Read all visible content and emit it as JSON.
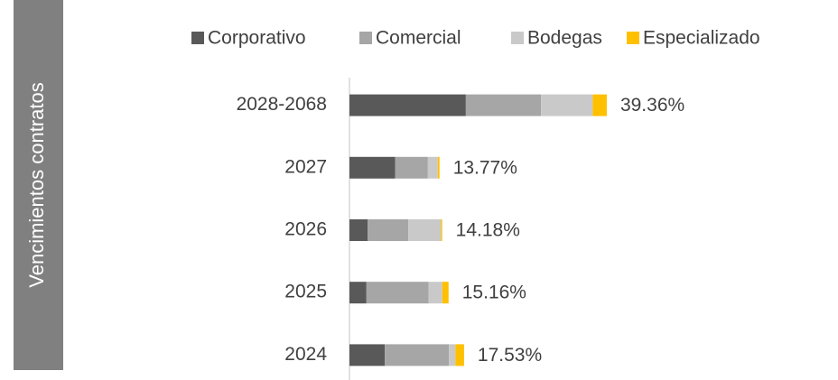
{
  "chart_data": {
    "type": "stacked-bar-horizontal",
    "y_label": "Vencimientos contratos",
    "categories": [
      "2028-2068",
      "2027",
      "2026",
      "2025",
      "2024"
    ],
    "series": [
      {
        "name": "Corporativo",
        "color": "#595959",
        "values": [
          17.8,
          7.0,
          2.8,
          2.6,
          5.4
        ]
      },
      {
        "name": "Comercial",
        "color": "#a6a6a6",
        "values": [
          11.5,
          5.0,
          6.2,
          9.5,
          9.8
        ]
      },
      {
        "name": "Bodegas",
        "color": "#c9c9c9",
        "values": [
          7.9,
          1.5,
          5.0,
          2.1,
          1.0
        ]
      },
      {
        "name": "Especializado",
        "color": "#ffc000",
        "values": [
          2.16,
          0.27,
          0.18,
          0.96,
          1.33
        ]
      }
    ],
    "totals": [
      39.36,
      13.77,
      14.18,
      15.16,
      17.53
    ],
    "total_labels": [
      "39.36%",
      "13.77%",
      "14.18%",
      "15.16%",
      "17.53%"
    ],
    "xlim": [
      0,
      50
    ],
    "legend": "top"
  }
}
